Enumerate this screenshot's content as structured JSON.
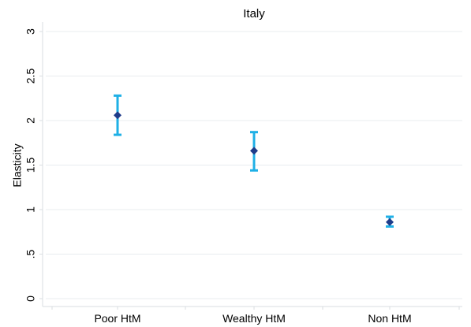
{
  "chart_data": {
    "type": "errorbar",
    "title": "Italy",
    "xlabel": "",
    "ylabel": "Elasticity",
    "categories": [
      "Poor HtM",
      "Wealthy HtM",
      "Non HtM"
    ],
    "y_ticks": [
      "0",
      ".5",
      "1",
      "1.5",
      "2",
      "2.5",
      "3"
    ],
    "y_tick_values": [
      0,
      0.5,
      1,
      1.5,
      2,
      2.5,
      3
    ],
    "ylim": [
      0,
      3
    ],
    "grid": "horizontal",
    "series": [
      {
        "points": [
          {
            "category": "Poor HtM",
            "value": 2.06,
            "lower": 1.84,
            "upper": 2.28
          },
          {
            "category": "Wealthy HtM",
            "value": 1.66,
            "lower": 1.44,
            "upper": 1.87
          },
          {
            "category": "Non HtM",
            "value": 0.86,
            "lower": 0.81,
            "upper": 0.92
          }
        ]
      }
    ],
    "colors": {
      "errorbar": "#1fb0e6",
      "marker": "#1f3c8a",
      "grid": "#e8ecef",
      "axis": "#d9dde1"
    }
  }
}
